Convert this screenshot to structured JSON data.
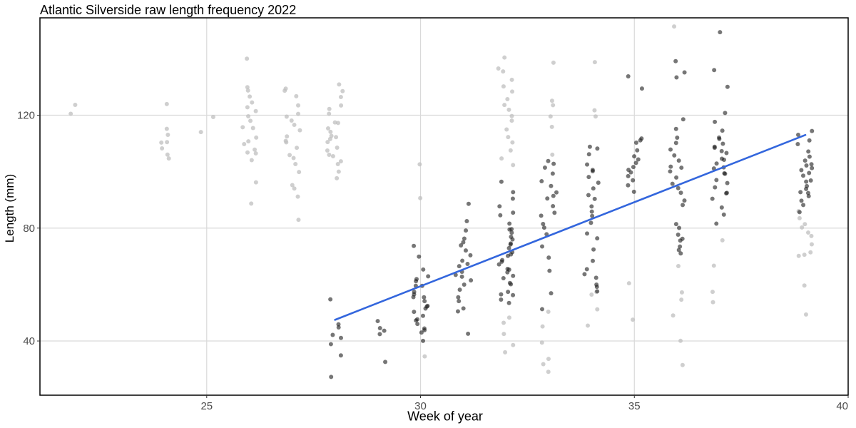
{
  "chart_data": {
    "type": "scatter",
    "title": "Atlantic Silverside raw length frequency 2022",
    "xlabel": "Week of year",
    "ylabel": "Length (mm)",
    "xlim": [
      21.1,
      40.0
    ],
    "ylim": [
      20.8,
      154.5
    ],
    "x_ticks": [
      25,
      30,
      35,
      40
    ],
    "y_ticks": [
      40,
      80,
      120
    ],
    "grid": true,
    "legend": "none",
    "colors": {
      "included_points": "#1a1a1a",
      "excluded_points": "#bfbfbf",
      "trend_line": "#3366dd",
      "grid": "#d9d9d9",
      "panel_border": "#000000"
    },
    "trend_line": {
      "x": [
        28,
        39
      ],
      "y": [
        47.5,
        113.0
      ]
    },
    "groups": [
      {
        "week": 22,
        "included": [],
        "excluded": [
          120,
          124
        ]
      },
      {
        "week": 24,
        "included": [],
        "excluded": [
          106,
          110,
          113,
          115,
          105,
          108,
          111,
          124
        ]
      },
      {
        "week": 25,
        "included": [],
        "excluded": [
          119,
          114
        ]
      },
      {
        "week": 26,
        "included": [],
        "excluded": [
          96,
          104,
          106,
          107,
          108,
          110,
          111,
          112,
          115,
          116,
          118,
          120,
          122,
          123,
          124,
          127,
          129,
          130,
          140,
          89
        ]
      },
      {
        "week": 27,
        "included": [],
        "excluded": [
          83,
          91,
          94,
          95,
          100,
          103,
          105,
          106,
          108,
          110,
          111,
          113,
          115,
          117,
          118,
          119,
          120,
          123,
          127,
          129,
          130
        ]
      },
      {
        "week": 28,
        "included": [
          27,
          35,
          39,
          41,
          42,
          45,
          46,
          55
        ],
        "excluded": [
          98,
          100,
          103,
          104,
          105,
          106,
          107,
          108,
          110,
          111,
          112,
          113,
          114,
          115,
          117,
          118,
          120,
          122,
          124,
          126,
          128,
          131
        ]
      },
      {
        "week": 29,
        "included": [
          32,
          42,
          44,
          45,
          47
        ],
        "excluded": []
      },
      {
        "week": 30,
        "included": [
          40,
          43,
          44,
          45,
          46,
          47,
          48,
          49,
          50,
          51,
          52,
          53,
          54,
          55,
          56,
          57,
          58,
          59,
          60,
          61,
          62,
          63,
          65,
          70,
          74
        ],
        "excluded": [
          34,
          91,
          103
        ]
      },
      {
        "week": 31,
        "included": [
          42,
          50,
          52,
          54,
          56,
          58,
          60,
          62,
          63,
          64,
          65,
          66,
          67,
          68,
          70,
          72,
          74,
          75,
          76,
          79,
          82,
          88
        ],
        "excluded": []
      },
      {
        "week": 32,
        "included": [
          53,
          55,
          56,
          57,
          58,
          60,
          61,
          62,
          63,
          64,
          65,
          66,
          67,
          68,
          69,
          70,
          71,
          72,
          73,
          74,
          75,
          76,
          77,
          78,
          79,
          80,
          82,
          84,
          86,
          88,
          90,
          93,
          97
        ],
        "excluded": [
          36,
          38,
          43,
          46,
          48,
          102,
          105,
          108,
          110,
          112,
          115,
          118,
          120,
          122,
          124,
          126,
          128,
          130,
          133,
          135,
          137,
          141
        ]
      },
      {
        "week": 33,
        "included": [
          51,
          57,
          65,
          70,
          74,
          78,
          80,
          82,
          84,
          86,
          88,
          90,
          92,
          93,
          95,
          97,
          99,
          101,
          103,
          104
        ],
        "excluded": [
          29,
          32,
          34,
          40,
          45,
          50,
          106,
          116,
          119,
          123,
          125,
          139
        ]
      },
      {
        "week": 34,
        "included": [
          58,
          59,
          60,
          62,
          64,
          66,
          68,
          72,
          76,
          78,
          82,
          84,
          86,
          88,
          90,
          92,
          94,
          96,
          98,
          100,
          101,
          103,
          106,
          108,
          109
        ],
        "excluded": [
          45,
          51,
          56,
          57,
          119,
          122,
          139
        ]
      },
      {
        "week": 35,
        "included": [
          93,
          95,
          97,
          98,
          100,
          101,
          102,
          103,
          104,
          105,
          108,
          110,
          111,
          112,
          130,
          134
        ],
        "excluded": [
          48,
          61
        ]
      },
      {
        "week": 36,
        "included": [
          71,
          72,
          74,
          75,
          76,
          78,
          80,
          82,
          88,
          90,
          92,
          94,
          96,
          98,
          100,
          101,
          102,
          104,
          106,
          108,
          110,
          112,
          115,
          118,
          133,
          135,
          139
        ],
        "excluded": [
          31,
          40,
          49,
          55,
          57,
          66,
          152
        ]
      },
      {
        "week": 37,
        "included": [
          82,
          85,
          87,
          90,
          92,
          93,
          95,
          96,
          97,
          99,
          100,
          101,
          102,
          103,
          104,
          105,
          106,
          107,
          108,
          109,
          110,
          111,
          112,
          115,
          118,
          121,
          130,
          136,
          150
        ],
        "excluded": [
          54,
          57,
          67,
          76
        ]
      },
      {
        "week": 39,
        "included": [
          86,
          88,
          90,
          91,
          92,
          93,
          94,
          95,
          96,
          97,
          98,
          99,
          100,
          101,
          102,
          103,
          104,
          105,
          107,
          110,
          111,
          113,
          115
        ],
        "excluded": [
          49,
          60,
          70,
          71,
          72,
          74,
          77,
          78,
          80,
          82,
          84,
          86
        ]
      }
    ]
  }
}
